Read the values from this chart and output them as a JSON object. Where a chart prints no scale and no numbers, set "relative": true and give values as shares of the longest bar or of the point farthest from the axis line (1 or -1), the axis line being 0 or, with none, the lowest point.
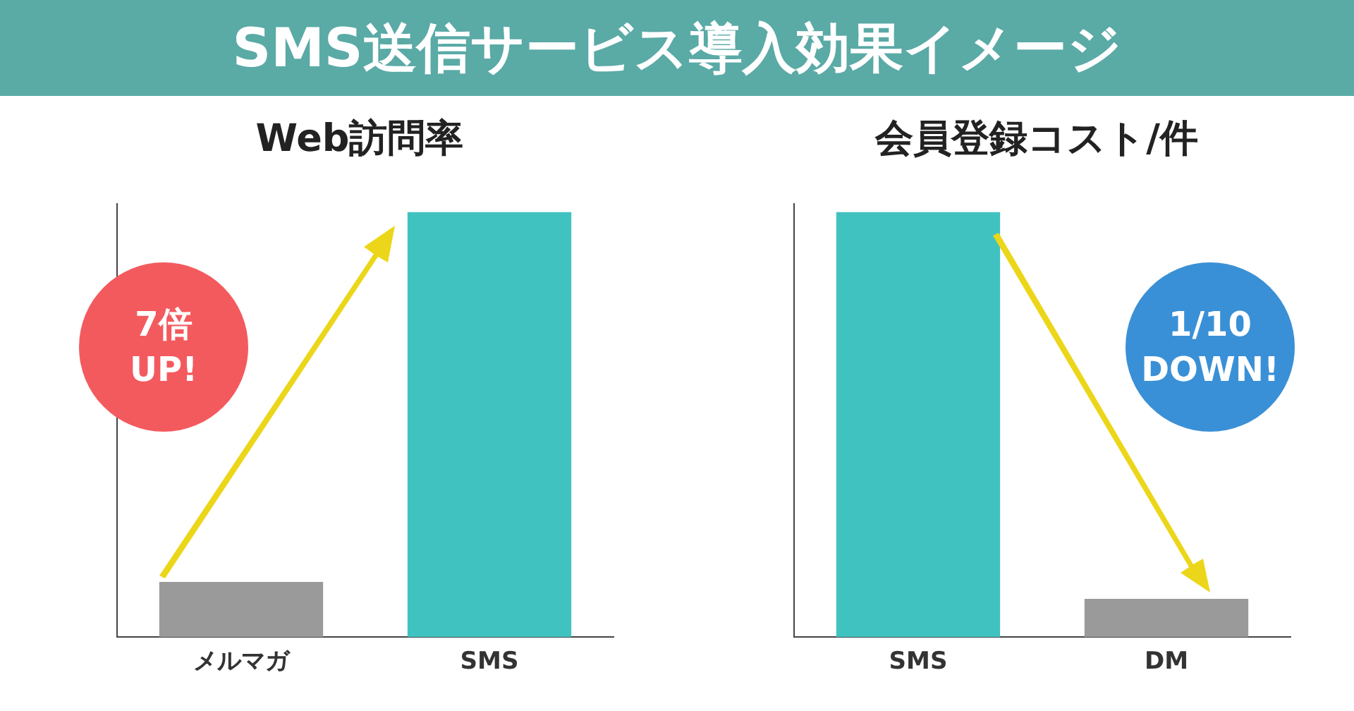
{
  "chart_data": [
    {
      "type": "bar",
      "title": "Web訪問率",
      "categories": [
        "メルマガ",
        "SMS"
      ],
      "values": [
        0.13,
        1
      ],
      "colors": [
        "#9a9a9a",
        "#40c2c0"
      ],
      "relative": true,
      "legend": false,
      "grid": false,
      "annotations": [
        "SMS送信サービス導入効果イメージ",
        "7倍\nUP!"
      ]
    },
    {
      "type": "bar",
      "title": "会員登録コスト/件",
      "categories": [
        "SMS",
        "DM"
      ],
      "values": [
        1,
        0.09
      ],
      "colors": [
        "#40c2c0",
        "#9a9a9a"
      ],
      "relative": true,
      "legend": false,
      "grid": false,
      "annotations": [
        "1/10\nDOWN!"
      ]
    }
  ]
}
